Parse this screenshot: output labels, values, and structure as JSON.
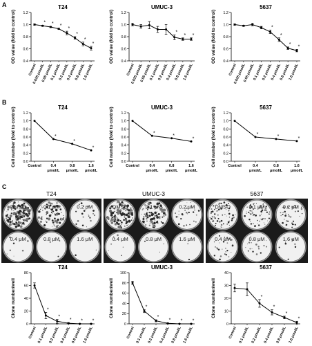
{
  "panel_labels": [
    "A",
    "B",
    "C"
  ],
  "chart_data": [
    {
      "type": "line",
      "panel": "A",
      "title": "T24",
      "ylabel": "OD value (fold to control)",
      "categories": [
        "Control",
        "0.025 μmol/L",
        "0.05 μmol/L",
        "0.1 μmol/L",
        "0.2 μmol/L",
        "0.4 μmol/L",
        "0.8 μmol/L",
        "1.6 μmol/L"
      ],
      "values": [
        1.0,
        0.98,
        0.96,
        0.93,
        0.86,
        0.78,
        0.68,
        0.61
      ],
      "errors": [
        0.01,
        0.01,
        0.01,
        0.01,
        0.03,
        0.02,
        0.03,
        0.03
      ],
      "significant": [
        false,
        true,
        true,
        true,
        true,
        true,
        true,
        true
      ],
      "ylim": [
        0.4,
        1.2
      ],
      "yticks": [
        0.4,
        0.6,
        0.8,
        1.0,
        1.2
      ]
    },
    {
      "type": "line",
      "panel": "A",
      "title": "UMUC-3",
      "ylabel": "OD value (fold to control)",
      "categories": [
        "Control",
        "0.025 μmol/L",
        "0.05 μmol/L",
        "0.1 μmol/L",
        "0.2 μmol/L",
        "0.4 μmol/L",
        "0.8 μmol/L",
        "1.6 μmol/L"
      ],
      "values": [
        1.0,
        0.97,
        0.99,
        0.92,
        0.92,
        0.79,
        0.76,
        0.76
      ],
      "errors": [
        0.02,
        0.03,
        0.06,
        0.05,
        0.08,
        0.04,
        0.02,
        0.02
      ],
      "significant": [
        false,
        false,
        false,
        false,
        false,
        true,
        true,
        true
      ],
      "ylim": [
        0.4,
        1.2
      ],
      "yticks": [
        0.4,
        0.6,
        0.8,
        1.0,
        1.2
      ]
    },
    {
      "type": "line",
      "panel": "A",
      "title": "5637",
      "ylabel": "OD value (fold to control)",
      "categories": [
        "Control",
        "0.025 μmol/L",
        "0.05 μmol/L",
        "0.1 μmol/L",
        "0.2 μmol/L",
        "0.4 μmol/L",
        "0.8 μmol/L",
        "1.6 μmol/L"
      ],
      "values": [
        1.0,
        0.98,
        1.0,
        0.95,
        0.88,
        0.75,
        0.61,
        0.57
      ],
      "errors": [
        0.01,
        0.01,
        0.02,
        0.02,
        0.03,
        0.03,
        0.02,
        0.02
      ],
      "significant": [
        false,
        false,
        false,
        false,
        true,
        true,
        true,
        true
      ],
      "ylim": [
        0.4,
        1.2
      ],
      "yticks": [
        0.4,
        0.6,
        0.8,
        1.0,
        1.2
      ]
    },
    {
      "type": "line",
      "panel": "B",
      "title": "T24",
      "ylabel": "Cell number (fold to control)",
      "categories": [
        "Control",
        "0.4 μmol/L",
        "0.8 μmol/L",
        "1.6 μmol/L"
      ],
      "values": [
        1.0,
        0.55,
        0.43,
        0.27
      ],
      "significant": [
        false,
        true,
        true,
        true
      ],
      "ylim": [
        0.0,
        1.2
      ],
      "yticks": [
        0.0,
        0.2,
        0.4,
        0.6,
        0.8,
        1.0,
        1.2
      ]
    },
    {
      "type": "line",
      "panel": "B",
      "title": "UMUC-3",
      "ylabel": "Cell number (fold to control)",
      "categories": [
        "Control",
        "0.4 μmol/L",
        "0.8 μmol/L",
        "1.6 μmol/L"
      ],
      "values": [
        1.0,
        0.63,
        0.57,
        0.49
      ],
      "significant": [
        false,
        true,
        true,
        true
      ],
      "ylim": [
        0.0,
        1.2
      ],
      "yticks": [
        0.0,
        0.2,
        0.4,
        0.6,
        0.8,
        1.0,
        1.2
      ]
    },
    {
      "type": "line",
      "panel": "B",
      "title": "5637",
      "ylabel": "Cell number (fold to control)",
      "categories": [
        "Control",
        "0.4 μmol/L",
        "0.8 μmol/L",
        "1.6 μmol/L"
      ],
      "values": [
        1.0,
        0.6,
        0.55,
        0.5
      ],
      "significant": [
        false,
        true,
        true,
        true
      ],
      "ylim": [
        0.0,
        1.2
      ],
      "yticks": [
        0.0,
        0.2,
        0.4,
        0.6,
        0.8,
        1.0,
        1.2
      ]
    },
    {
      "type": "line",
      "panel": "C",
      "title": "T24",
      "ylabel": "Clone number/well",
      "categories": [
        "Control",
        "0.1 μmol/L",
        "0.2 μmol/L",
        "0.4 μmol/L",
        "0.8 μmol/L",
        "1.6 μmol/L"
      ],
      "values": [
        60,
        13,
        4,
        1,
        0,
        0
      ],
      "errors": [
        4,
        5,
        3,
        1,
        0.5,
        0.5
      ],
      "significant": [
        false,
        true,
        true,
        true,
        true,
        true
      ],
      "ylim": [
        0,
        80
      ],
      "yticks": [
        0,
        20,
        40,
        60,
        80
      ]
    },
    {
      "type": "line",
      "panel": "C",
      "title": "UMUC-3",
      "ylabel": "Clone number/well",
      "categories": [
        "Control",
        "0.1 μmol/L",
        "0.2 μmol/L",
        "0.4 μmol/L",
        "0.8 μmol/L",
        "1.6 μmol/L"
      ],
      "values": [
        80,
        25,
        6,
        1,
        0,
        0
      ],
      "errors": [
        3,
        3,
        2,
        1,
        0.5,
        0.5
      ],
      "significant": [
        false,
        true,
        true,
        true,
        true,
        true
      ],
      "ylim": [
        0,
        100
      ],
      "yticks": [
        0,
        20,
        40,
        60,
        80,
        100
      ]
    },
    {
      "type": "line",
      "panel": "C",
      "title": "5637",
      "ylabel": "Clone number/well",
      "categories": [
        "Control",
        "0.1 μmol/L",
        "0.2 μmol/L",
        "0.4 μmol/L",
        "0.8 μmol/L",
        "1.6 μmol/L"
      ],
      "values": [
        28,
        27,
        16,
        9,
        5,
        1
      ],
      "errors": [
        3,
        5,
        3,
        2,
        1,
        1
      ],
      "significant": [
        false,
        false,
        true,
        true,
        true,
        true
      ],
      "ylim": [
        0,
        40
      ],
      "yticks": [
        0,
        10,
        20,
        30,
        40
      ]
    }
  ],
  "plate_images": [
    {
      "title": "T24",
      "wells": [
        "DMSO",
        "0.1 μM",
        "0.2 μM",
        "0.4 μM",
        "0.8 μM",
        "1.6 μM"
      ],
      "colony_density": [
        0.95,
        0.55,
        0.15,
        0.05,
        0.02,
        0.02
      ]
    },
    {
      "title": "UMUC-3",
      "wells": [
        "DMSO",
        "0.1 μM",
        "0.2 μM",
        "0.4 μM",
        "0.8 μM",
        "1.6 μM"
      ],
      "colony_density": [
        0.95,
        0.7,
        0.2,
        0.05,
        0.02,
        0.02
      ]
    },
    {
      "title": "5637",
      "wells": [
        "DMSO",
        "0.1 μM",
        "0.2 μM",
        "0.4 μM",
        "0.8 μM",
        "1.6 μM"
      ],
      "colony_density": [
        0.45,
        0.45,
        0.3,
        0.2,
        0.12,
        0.05
      ]
    }
  ],
  "significance_marker": "*"
}
